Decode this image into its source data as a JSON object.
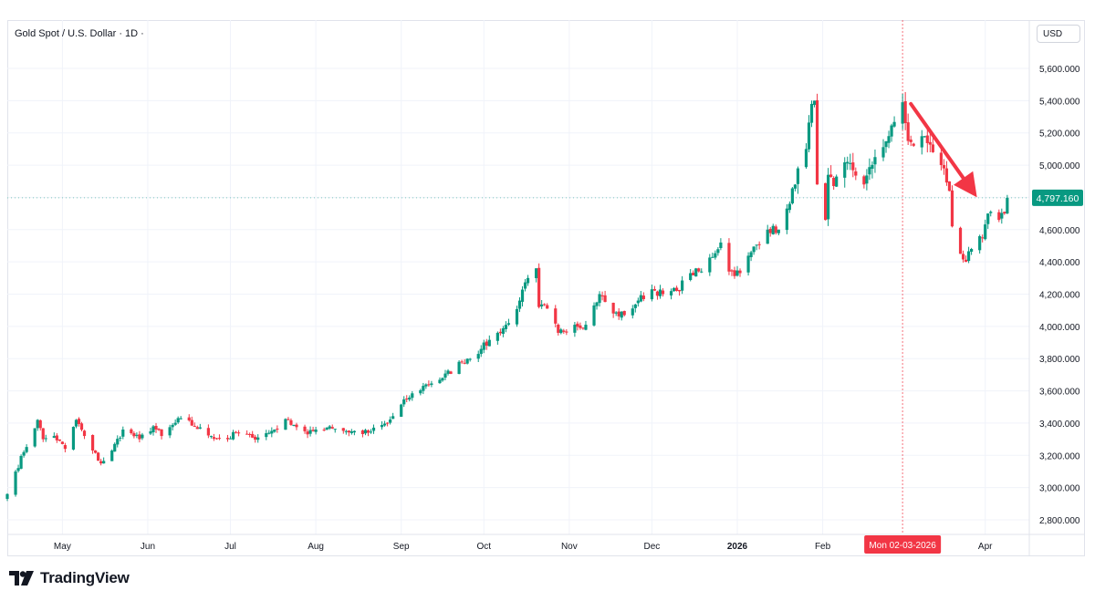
{
  "header": {
    "title": "Gold Spot / U.S. Dollar · 1D ·",
    "currency": "USD"
  },
  "footer": {
    "brand": "TradingView"
  },
  "crosshair": {
    "date_label": "Mon 02-03-2026"
  },
  "last_price_label": "4,797.160",
  "colors": {
    "up": "#089981",
    "down": "#f23645",
    "arrow": "#f23645",
    "grid": "#f0f3fa"
  },
  "chart_data": {
    "type": "candlestick",
    "title": "Gold Spot / U.S. Dollar",
    "interval": "1D",
    "y_unit": "USD",
    "ylim": [
      2700,
      5900
    ],
    "y_ticks": [
      2800,
      3000,
      3200,
      3400,
      3600,
      3800,
      4000,
      4200,
      4400,
      4600,
      4800,
      5000,
      5200,
      5400,
      5600
    ],
    "y_tick_labels": [
      "2,800.000",
      "3,000.000",
      "3,200.000",
      "3,400.000",
      "3,600.000",
      "3,800.000",
      "4,000.000",
      "4,200.000",
      "4,400.000",
      "4,600.000",
      "4,800.000",
      "5,000.000",
      "5,200.000",
      "5,400.000",
      "5,600.000"
    ],
    "x_range": [
      "2025-04-11",
      "2026-04-17"
    ],
    "x_ticks": [
      {
        "label": "May",
        "date": "2025-05-01",
        "bold": false
      },
      {
        "label": "Jun",
        "date": "2025-06-01",
        "bold": false
      },
      {
        "label": "Jul",
        "date": "2025-07-01",
        "bold": false
      },
      {
        "label": "Aug",
        "date": "2025-08-01",
        "bold": false
      },
      {
        "label": "Sep",
        "date": "2025-09-01",
        "bold": false
      },
      {
        "label": "Oct",
        "date": "2025-10-01",
        "bold": false
      },
      {
        "label": "Nov",
        "date": "2025-11-01",
        "bold": false
      },
      {
        "label": "Dec",
        "date": "2025-12-01",
        "bold": false
      },
      {
        "label": "2026",
        "date": "2026-01-01",
        "bold": true
      },
      {
        "label": "Feb",
        "date": "2026-02-01",
        "bold": false
      },
      {
        "label": "Apr",
        "date": "2026-04-01",
        "bold": false
      }
    ],
    "crosshair_date": "2026-03-02",
    "last_price": 4797.16,
    "close_path": [
      [
        "2025-04-11",
        2960
      ],
      [
        "2025-04-14",
        3100
      ],
      [
        "2025-04-17",
        3220
      ],
      [
        "2025-04-22",
        3420
      ],
      [
        "2025-04-24",
        3300
      ],
      [
        "2025-04-28",
        3320
      ],
      [
        "2025-05-02",
        3240
      ],
      [
        "2025-05-06",
        3420
      ],
      [
        "2025-05-09",
        3320
      ],
      [
        "2025-05-12",
        3230
      ],
      [
        "2025-05-15",
        3150
      ],
      [
        "2025-05-19",
        3230
      ],
      [
        "2025-05-23",
        3360
      ],
      [
        "2025-05-29",
        3300
      ],
      [
        "2025-06-03",
        3380
      ],
      [
        "2025-06-06",
        3320
      ],
      [
        "2025-06-13",
        3430
      ],
      [
        "2025-06-18",
        3380
      ],
      [
        "2025-06-24",
        3320
      ],
      [
        "2025-06-30",
        3300
      ],
      [
        "2025-07-03",
        3340
      ],
      [
        "2025-07-09",
        3310
      ],
      [
        "2025-07-15",
        3340
      ],
      [
        "2025-07-22",
        3420
      ],
      [
        "2025-07-29",
        3330
      ],
      [
        "2025-08-01",
        3360
      ],
      [
        "2025-08-06",
        3380
      ],
      [
        "2025-08-12",
        3350
      ],
      [
        "2025-08-20",
        3340
      ],
      [
        "2025-08-27",
        3400
      ],
      [
        "2025-09-03",
        3550
      ],
      [
        "2025-09-10",
        3640
      ],
      [
        "2025-09-16",
        3680
      ],
      [
        "2025-09-23",
        3780
      ],
      [
        "2025-09-30",
        3860
      ],
      [
        "2025-10-06",
        3960
      ],
      [
        "2025-10-10",
        4020
      ],
      [
        "2025-10-14",
        4160
      ],
      [
        "2025-10-17",
        4300
      ],
      [
        "2025-10-20",
        4360
      ],
      [
        "2025-10-21",
        4120
      ],
      [
        "2025-10-24",
        4110
      ],
      [
        "2025-10-28",
        3960
      ],
      [
        "2025-11-03",
        4010
      ],
      [
        "2025-11-07",
        4010
      ],
      [
        "2025-11-12",
        4200
      ],
      [
        "2025-11-17",
        4080
      ],
      [
        "2025-11-21",
        4070
      ],
      [
        "2025-11-26",
        4160
      ],
      [
        "2025-12-01",
        4230
      ],
      [
        "2025-12-05",
        4200
      ],
      [
        "2025-12-10",
        4220
      ],
      [
        "2025-12-15",
        4330
      ],
      [
        "2025-12-19",
        4340
      ],
      [
        "2025-12-26",
        4520
      ],
      [
        "2025-12-29",
        4340
      ],
      [
        "2026-01-02",
        4330
      ],
      [
        "2026-01-06",
        4460
      ],
      [
        "2026-01-12",
        4600
      ],
      [
        "2026-01-16",
        4600
      ],
      [
        "2026-01-20",
        4760
      ],
      [
        "2026-01-23",
        4980
      ],
      [
        "2026-01-26",
        5100
      ],
      [
        "2026-01-28",
        5380
      ],
      [
        "2026-01-29",
        5400
      ],
      [
        "2026-01-30",
        4880
      ],
      [
        "2026-02-02",
        4660
      ],
      [
        "2026-02-03",
        4940
      ],
      [
        "2026-02-05",
        4870
      ],
      [
        "2026-02-10",
        5020
      ],
      [
        "2026-02-16",
        4880
      ],
      [
        "2026-02-20",
        5050
      ],
      [
        "2026-02-25",
        5180
      ],
      [
        "2026-03-02",
        5390
      ],
      [
        "2026-03-04",
        5150
      ],
      [
        "2026-03-06",
        5120
      ],
      [
        "2026-03-10",
        5180
      ],
      [
        "2026-03-13",
        5080
      ],
      [
        "2026-03-17",
        4980
      ],
      [
        "2026-03-19",
        4840
      ],
      [
        "2026-03-20",
        4620
      ],
      [
        "2026-03-23",
        4450
      ],
      [
        "2026-03-25",
        4400
      ],
      [
        "2026-03-27",
        4480
      ],
      [
        "2026-03-31",
        4550
      ],
      [
        "2026-04-02",
        4700
      ],
      [
        "2026-04-06",
        4660
      ],
      [
        "2026-04-08",
        4700
      ],
      [
        "2026-04-09",
        4797.16
      ]
    ],
    "annotations": [
      {
        "type": "arrow",
        "color": "#f23645",
        "from": [
          "2026-03-05",
          5380
        ],
        "to": [
          "2026-03-29",
          4800
        ]
      }
    ],
    "grid": true
  }
}
